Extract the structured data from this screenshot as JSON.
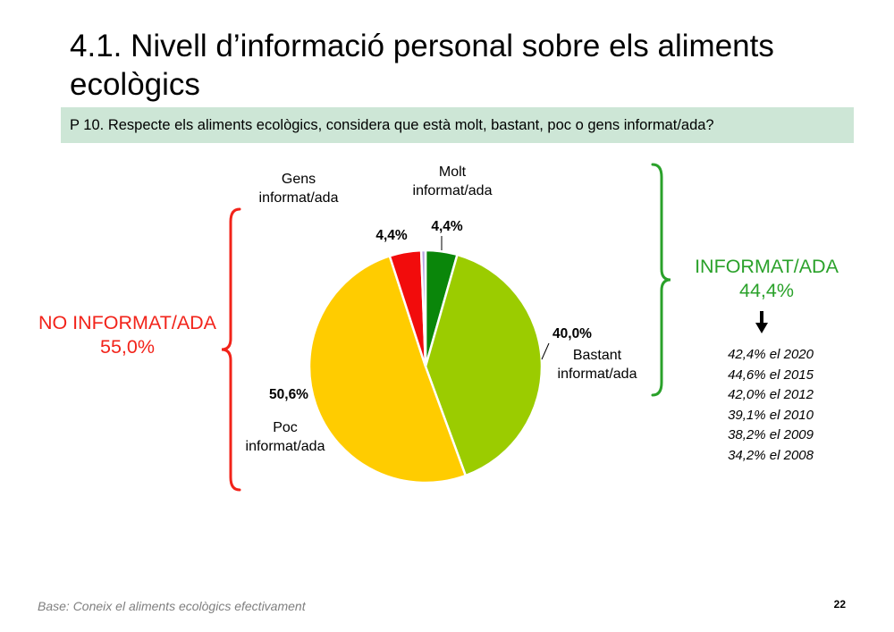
{
  "title": "4.1. Nivell d’informació personal sobre els aliments ecològics",
  "question": "P 10. Respecte els aliments ecològics, considera que està molt, bastant, poc o gens informat/ada?",
  "colors": {
    "no_group": "#f2231a",
    "yes_group": "#2aa12a",
    "question_bg": "#cde6d6"
  },
  "no_summary": {
    "label": "NO INFORMAT/ADA",
    "value": "55,0%"
  },
  "yes_summary": {
    "label": "INFORMAT/ADA",
    "value": "44,4%"
  },
  "history": [
    "42,4% el 2020",
    "44,6% el 2015",
    "42,0% el 2012",
    "39,1% el 2010",
    "38,2% el 2009",
    "34,2% el 2008"
  ],
  "footer": {
    "base": "Base: Coneix el aliments ecològics efectivament",
    "page": "22"
  },
  "chart_data": {
    "type": "pie",
    "start_angle_deg": 0,
    "direction": "clockwise",
    "slices": [
      {
        "label": "Molt informat/ada",
        "value": 4.4,
        "value_label": "4,4%",
        "color": "#0a860a"
      },
      {
        "label": "Bastant informat/ada",
        "value": 40.0,
        "value_label": "40,0%",
        "color": "#9bcc00"
      },
      {
        "label": "Poc informat/ada",
        "value": 50.6,
        "value_label": "50,6%",
        "color": "#ffcc00"
      },
      {
        "label": "Gens informat/ada",
        "value": 4.4,
        "value_label": "4,4%",
        "color": "#f20c0c"
      },
      {
        "label": "",
        "value": 0.6,
        "value_label": "",
        "color": "#b8a6e0"
      }
    ]
  }
}
